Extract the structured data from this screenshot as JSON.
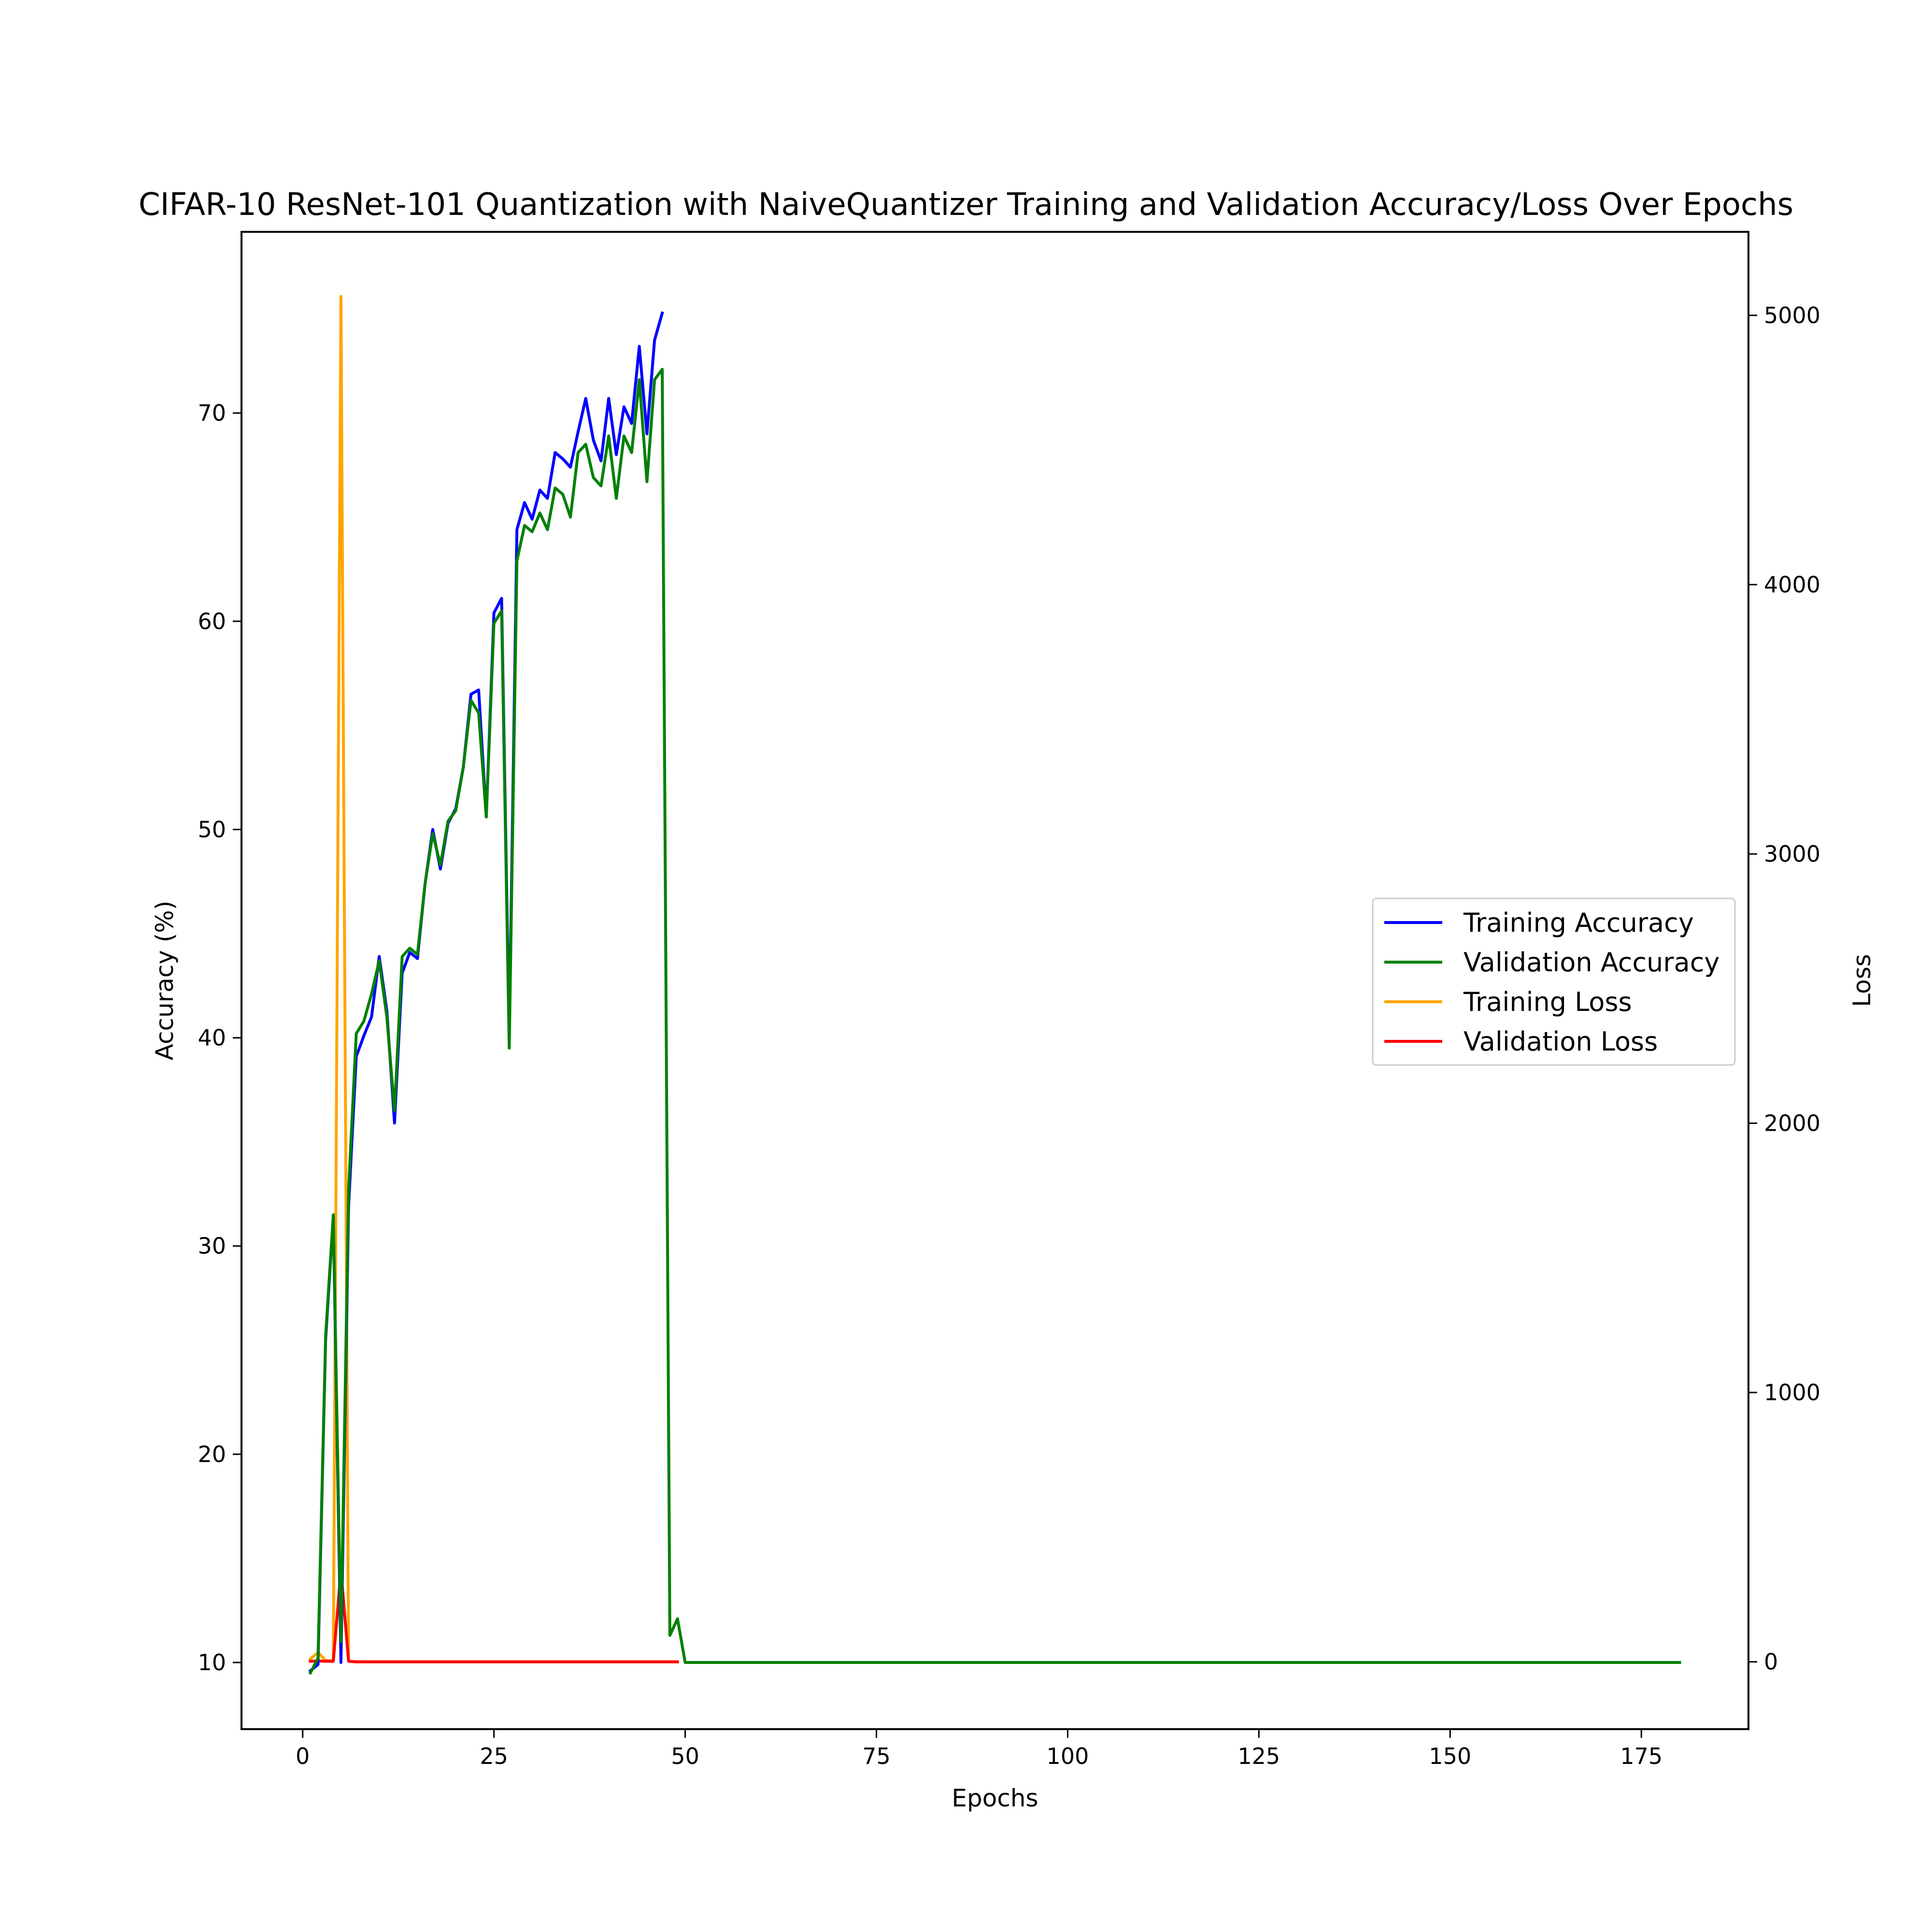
{
  "chart_data": {
    "type": "line",
    "title": "CIFAR-10 ResNet-101 Quantization with NaiveQuantizer Training and Validation Accuracy/Loss Over Epochs",
    "xlabel": "Epochs",
    "ylabel": "Accuracy (%)",
    "y2label": "Loss",
    "xlim": [
      -8,
      189
    ],
    "ylim": [
      6.8,
      78.7
    ],
    "y2lim": [
      -250,
      5310
    ],
    "xticks": [
      0,
      25,
      50,
      75,
      100,
      125,
      150,
      175
    ],
    "yticks": [
      10,
      20,
      30,
      40,
      50,
      60,
      70
    ],
    "y2ticks": [
      0,
      1000,
      2000,
      3000,
      4000,
      5000
    ],
    "grid": false,
    "legend_position": "center-right",
    "series": [
      {
        "name": "Training Accuracy",
        "axis": "left",
        "color": "#0000ff",
        "x": [
          1,
          2,
          3,
          4,
          5,
          6,
          7,
          8,
          9,
          10,
          11,
          12,
          13,
          14,
          15,
          16,
          17,
          18,
          19,
          20,
          21,
          22,
          23,
          24,
          25,
          26,
          27,
          28,
          29,
          30,
          31,
          32,
          33,
          34,
          35,
          36,
          37,
          38,
          39,
          40,
          41,
          42,
          43,
          44,
          45,
          46,
          47
        ],
        "y": [
          9.6,
          9.9,
          25.5,
          31.4,
          10.0,
          31.9,
          39.1,
          40.1,
          41.0,
          43.9,
          41.3,
          35.9,
          43.1,
          44.1,
          43.8,
          47.4,
          50.0,
          48.1,
          50.3,
          51.0,
          53.0,
          56.5,
          56.7,
          50.6,
          60.4,
          61.1,
          40.1,
          64.4,
          65.7,
          64.9,
          66.3,
          65.9,
          68.1,
          67.8,
          67.4,
          69.1,
          70.7,
          68.7,
          67.7,
          70.7,
          68.0,
          70.3,
          69.5,
          73.2,
          69.0,
          73.5,
          74.8
        ]
      },
      {
        "name": "Validation Accuracy",
        "axis": "left",
        "color": "#008000",
        "x": [
          1,
          2,
          3,
          4,
          5,
          6,
          7,
          8,
          9,
          10,
          11,
          12,
          13,
          14,
          15,
          16,
          17,
          18,
          19,
          20,
          21,
          22,
          23,
          24,
          25,
          26,
          27,
          28,
          29,
          30,
          31,
          32,
          33,
          34,
          35,
          36,
          37,
          38,
          39,
          40,
          41,
          42,
          43,
          44,
          45,
          46,
          47,
          48,
          49,
          50,
          180
        ],
        "y": [
          9.5,
          10.2,
          25.7,
          31.5,
          11.0,
          32.7,
          40.2,
          40.8,
          42.1,
          43.7,
          41.0,
          36.5,
          43.9,
          44.3,
          44.0,
          47.4,
          49.8,
          48.3,
          50.4,
          50.9,
          53.0,
          56.2,
          55.6,
          50.6,
          59.9,
          60.5,
          39.5,
          62.9,
          64.6,
          64.3,
          65.2,
          64.4,
          66.4,
          66.1,
          65.0,
          68.1,
          68.5,
          66.9,
          66.5,
          68.9,
          65.9,
          68.9,
          68.1,
          71.6,
          66.7,
          71.6,
          72.1,
          11.3,
          12.1,
          10.0,
          10.0
        ]
      },
      {
        "name": "Training Loss",
        "axis": "right",
        "color": "#ffa500",
        "x": [
          1,
          2,
          3,
          4,
          5,
          6,
          7,
          8,
          10,
          15,
          20,
          30,
          40,
          49
        ],
        "y": [
          10,
          35,
          5,
          3,
          5070,
          2,
          0,
          0,
          0,
          0,
          0,
          0,
          0,
          0
        ]
      },
      {
        "name": "Validation Loss",
        "axis": "right",
        "color": "#ff0000",
        "x": [
          1,
          2,
          3,
          4,
          5,
          6,
          7,
          8,
          10,
          15,
          20,
          30,
          40,
          49
        ],
        "y": [
          2,
          3,
          2,
          2,
          340,
          2,
          0,
          0,
          0,
          0,
          0,
          0,
          0,
          0
        ]
      }
    ]
  }
}
